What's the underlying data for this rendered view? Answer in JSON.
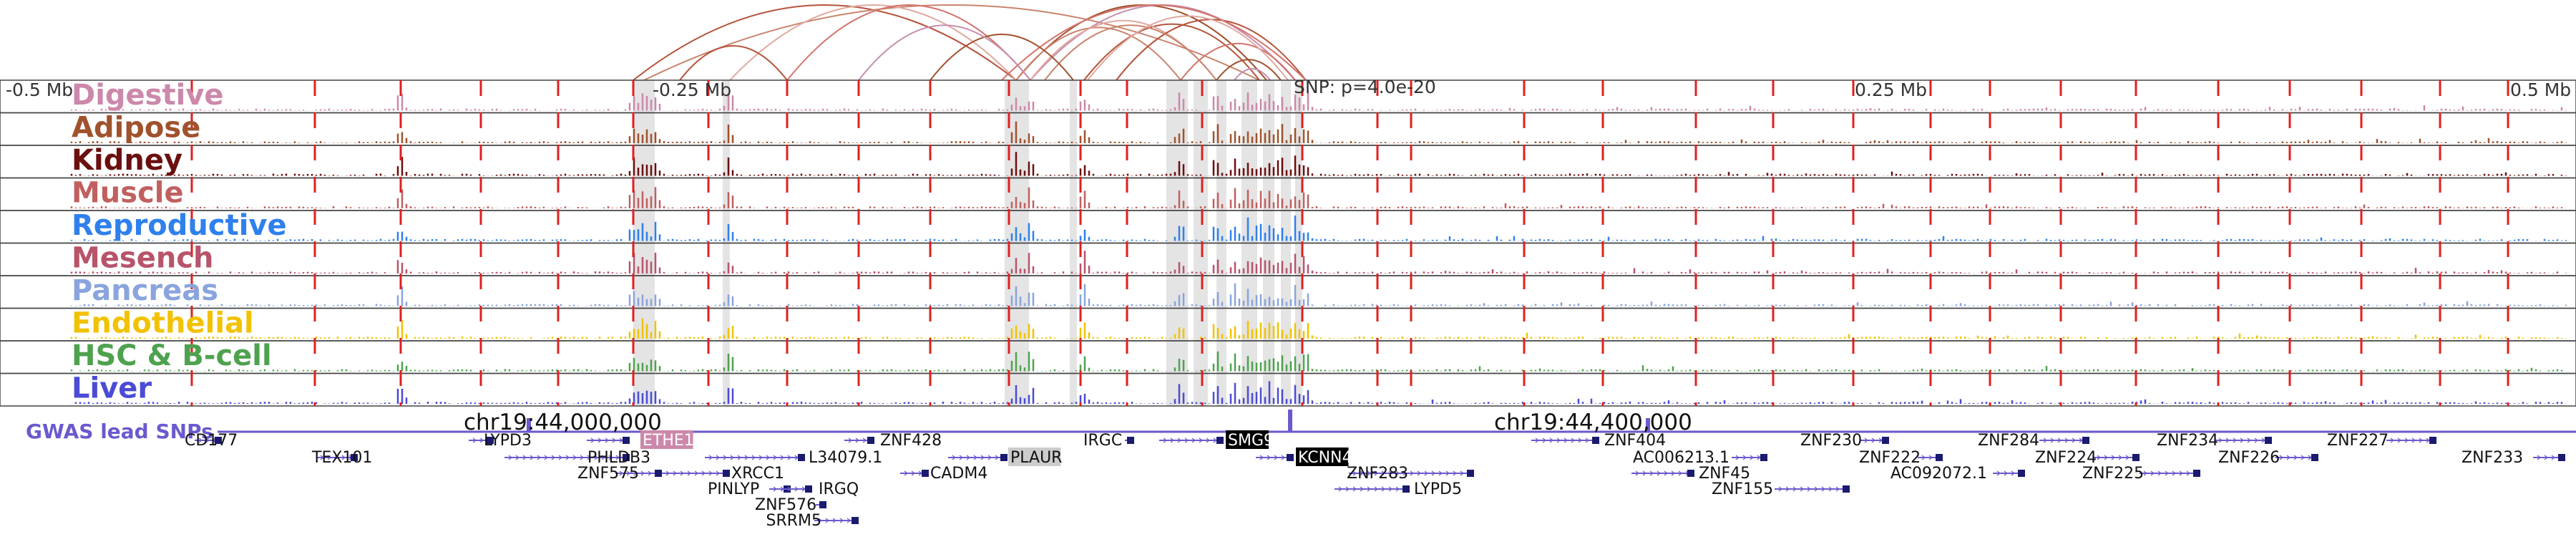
{
  "axis": {
    "ticks": [
      "-0.5 Mb",
      "-0.25 Mb",
      "0.25 Mb",
      "0.5 Mb"
    ],
    "snp_label": "SNP: p=4.0e-20"
  },
  "tracks": [
    {
      "name": "Digestive",
      "color": "#cc88aa"
    },
    {
      "name": "Adipose",
      "color": "#a0522d"
    },
    {
      "name": "Kidney",
      "color": "#6b0f0f"
    },
    {
      "name": "Muscle",
      "color": "#c06060"
    },
    {
      "name": "Reproductive",
      "color": "#2f80ed"
    },
    {
      "name": "Mesench",
      "color": "#b8546a"
    },
    {
      "name": "Pancreas",
      "color": "#8aa4dd"
    },
    {
      "name": "Endothelial",
      "color": "#f2c200"
    },
    {
      "name": "HSC & B-cell",
      "color": "#4ea24e"
    },
    {
      "name": "Liver",
      "color": "#4b4bd6"
    }
  ],
  "gwas": {
    "label": "GWAS lead SNPs",
    "color": "#6a5acd",
    "coord_left": "chr19:44,000,000",
    "coord_right": "chr19:44,400,000"
  },
  "genes": [
    {
      "label": "CD177",
      "highlight": "none"
    },
    {
      "label": "TEX101",
      "highlight": "none"
    },
    {
      "label": "LYPD3",
      "highlight": "none"
    },
    {
      "label": "PHLDB3",
      "highlight": "none"
    },
    {
      "label": "ZNF575",
      "highlight": "none"
    },
    {
      "label": "ETHE1",
      "highlight": "pink"
    },
    {
      "label": "L34079.1",
      "highlight": "none"
    },
    {
      "label": "XRCC1",
      "highlight": "none"
    },
    {
      "label": "PINLYP",
      "highlight": "none"
    },
    {
      "label": "IRGQ",
      "highlight": "none"
    },
    {
      "label": "ZNF576",
      "highlight": "none"
    },
    {
      "label": "SRRM5",
      "highlight": "none"
    },
    {
      "label": "ZNF428",
      "highlight": "none"
    },
    {
      "label": "CADM4",
      "highlight": "none"
    },
    {
      "label": "PLAUR",
      "highlight": "gray"
    },
    {
      "label": "IRGC",
      "highlight": "none"
    },
    {
      "label": "SMG9",
      "highlight": "black"
    },
    {
      "label": "KCNN4",
      "highlight": "black"
    },
    {
      "label": "ZNF283",
      "highlight": "none"
    },
    {
      "label": "LYPD5",
      "highlight": "none"
    },
    {
      "label": "ZNF404",
      "highlight": "none"
    },
    {
      "label": "AC006213.1",
      "highlight": "none"
    },
    {
      "label": "ZNF45",
      "highlight": "none"
    },
    {
      "label": "ZNF155",
      "highlight": "none"
    },
    {
      "label": "ZNF230",
      "highlight": "none"
    },
    {
      "label": "ZNF222",
      "highlight": "none"
    },
    {
      "label": "AC092072.1",
      "highlight": "none"
    },
    {
      "label": "ZNF284",
      "highlight": "none"
    },
    {
      "label": "ZNF224",
      "highlight": "none"
    },
    {
      "label": "ZNF225",
      "highlight": "none"
    },
    {
      "label": "ZNF234",
      "highlight": "none"
    },
    {
      "label": "ZNF226",
      "highlight": "none"
    },
    {
      "label": "ZNF227",
      "highlight": "none"
    },
    {
      "label": "ZNF233",
      "highlight": "none"
    }
  ],
  "colors": {
    "red_line": "#e02020",
    "gray_band": "#d8d8d8",
    "gene_body": "#1a1a6e",
    "track_border": "#444444"
  }
}
